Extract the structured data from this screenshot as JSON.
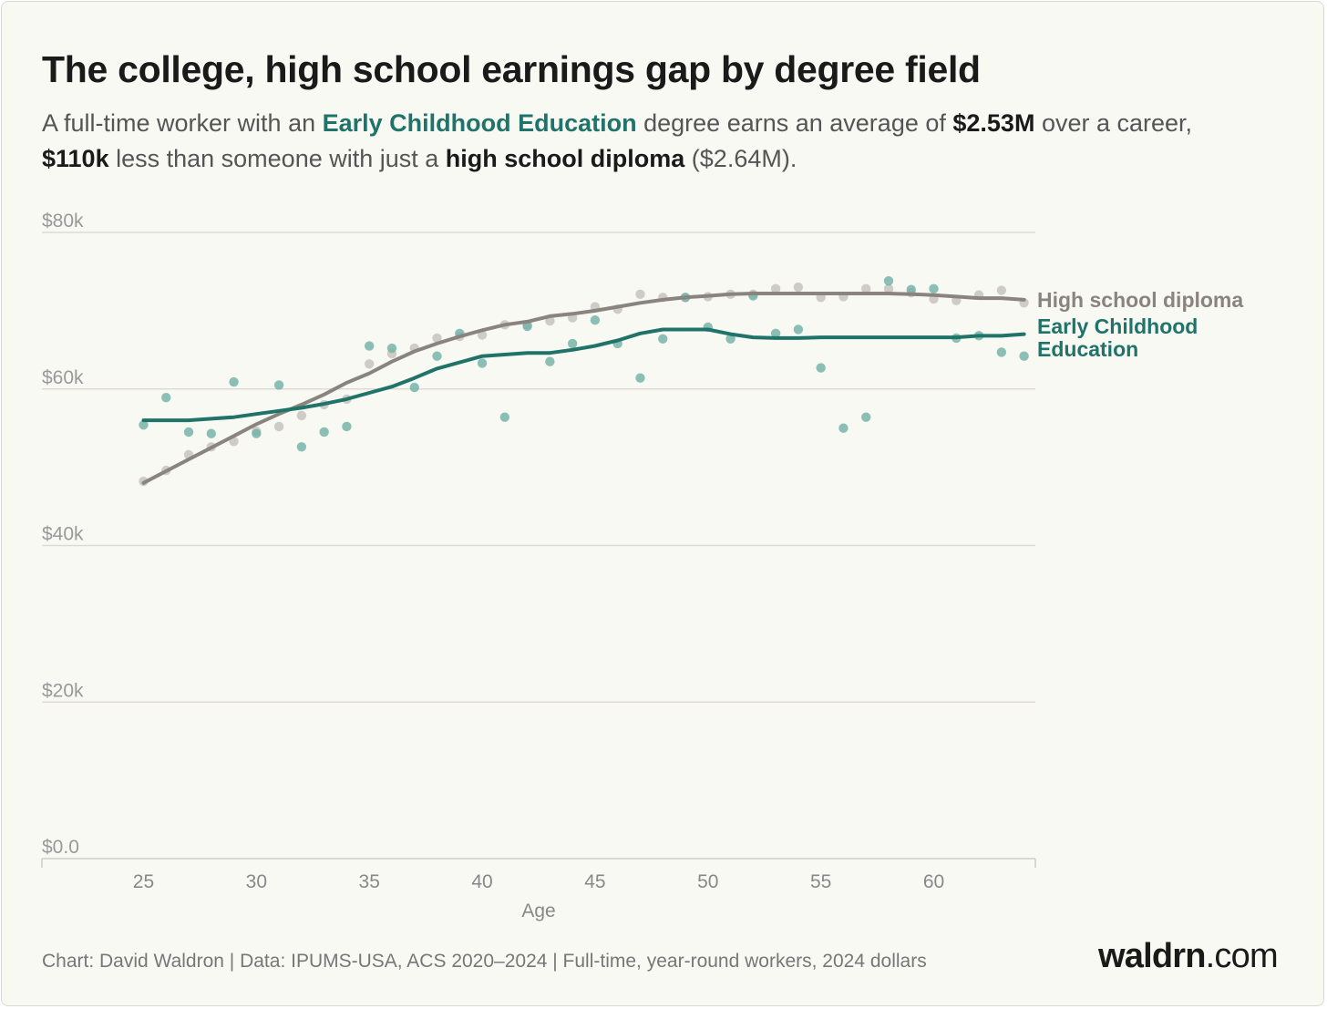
{
  "header": {
    "title": "The college, high school earnings gap by degree field",
    "subtitle": {
      "t1": "A full-time worker with an ",
      "field": "Early Childhood Education",
      "t2": " degree earns an average of ",
      "career_total": "$2.53M",
      "t3": " over a career, ",
      "gap": "$110k",
      "t4": " less than someone with just a ",
      "comparison": "high school diploma",
      "t5": " ($2.64M)."
    }
  },
  "footer": {
    "credit": "Chart: David Waldron | Data: IPUMS-USA, ACS 2020–2024 | Full-time, year-round workers, 2024 dollars",
    "brand_name": "waldrn",
    "brand_tld": ".com"
  },
  "colors": {
    "hs": "#8a8480",
    "hs_point": "#c4c0bb",
    "ece": "#1f7368",
    "ece_point": "#6fb0a6",
    "grid": "#dddbd4"
  },
  "chart_data": {
    "type": "line",
    "xlabel": "Age",
    "ylabel": "",
    "xlim": [
      20.5,
      64.5
    ],
    "ylim": [
      0,
      80000
    ],
    "x_ticks": [
      25,
      30,
      35,
      40,
      45,
      50,
      55,
      60
    ],
    "y_ticks": [
      0,
      20000,
      40000,
      60000,
      80000
    ],
    "y_tick_labels": [
      "$0.0",
      "$20k",
      "$40k",
      "$60k",
      "$80k"
    ],
    "grid": true,
    "series": [
      {
        "name": "High school diploma",
        "label_lines": [
          "High school diploma"
        ],
        "color": "#8a8480",
        "point_color": "#c4c0bb",
        "trend": {
          "x": [
            25,
            26,
            27,
            28,
            29,
            30,
            31,
            32,
            33,
            34,
            35,
            36,
            37,
            38,
            39,
            40,
            41,
            42,
            43,
            44,
            45,
            46,
            47,
            48,
            49,
            50,
            51,
            52,
            53,
            54,
            55,
            56,
            57,
            58,
            59,
            60,
            61,
            62,
            63,
            64
          ],
          "y": [
            48000,
            49500,
            51000,
            52500,
            54000,
            55500,
            56800,
            58000,
            59300,
            60800,
            62000,
            63500,
            64800,
            65800,
            66700,
            67500,
            68200,
            68600,
            69300,
            69600,
            70000,
            70500,
            71000,
            71400,
            71700,
            71900,
            72100,
            72200,
            72200,
            72200,
            72200,
            72200,
            72200,
            72200,
            72100,
            72000,
            71800,
            71600,
            71600,
            71400
          ]
        },
        "points": {
          "x": [
            25,
            26,
            27,
            28,
            29,
            30,
            31,
            32,
            33,
            34,
            35,
            36,
            37,
            38,
            39,
            40,
            41,
            42,
            43,
            44,
            45,
            46,
            47,
            48,
            49,
            50,
            51,
            52,
            53,
            54,
            55,
            56,
            57,
            58,
            59,
            60,
            61,
            62,
            63,
            64
          ],
          "y": [
            48200,
            49600,
            51600,
            52600,
            53300,
            54600,
            55200,
            56600,
            58000,
            58700,
            63200,
            64500,
            65200,
            66500,
            66700,
            66900,
            68200,
            68200,
            68700,
            69100,
            70500,
            70200,
            72100,
            71700,
            71700,
            71800,
            72100,
            72100,
            72800,
            73000,
            71700,
            71800,
            72800,
            72800,
            72300,
            71500,
            71300,
            72000,
            72600,
            71000
          ]
        }
      },
      {
        "name": "Early Childhood Education",
        "label_lines": [
          "Early Childhood",
          "Education"
        ],
        "color": "#1f7368",
        "point_color": "#6fb0a6",
        "trend": {
          "x": [
            25,
            26,
            27,
            28,
            29,
            30,
            31,
            32,
            33,
            34,
            35,
            36,
            37,
            38,
            39,
            40,
            41,
            42,
            43,
            44,
            45,
            46,
            47,
            48,
            49,
            50,
            51,
            52,
            53,
            54,
            55,
            56,
            57,
            58,
            59,
            60,
            61,
            62,
            63,
            64
          ],
          "y": [
            56000,
            56000,
            56000,
            56200,
            56400,
            56800,
            57200,
            57600,
            58100,
            58700,
            59500,
            60300,
            61400,
            62600,
            63400,
            64200,
            64400,
            64600,
            64600,
            65000,
            65500,
            66200,
            67100,
            67600,
            67600,
            67600,
            67000,
            66600,
            66500,
            66500,
            66600,
            66600,
            66600,
            66600,
            66600,
            66600,
            66600,
            66800,
            66800,
            67000
          ]
        },
        "points": {
          "x": [
            25,
            26,
            27,
            28,
            29,
            30,
            31,
            32,
            33,
            34,
            35,
            36,
            37,
            38,
            39,
            40,
            41,
            42,
            43,
            44,
            45,
            46,
            47,
            48,
            49,
            50,
            51,
            52,
            53,
            54,
            55,
            56,
            57,
            58,
            59,
            60,
            61,
            62,
            63,
            64
          ],
          "y": [
            55400,
            58900,
            54500,
            54300,
            60900,
            54300,
            60500,
            52600,
            54500,
            55200,
            65500,
            65200,
            60200,
            64200,
            67100,
            63300,
            56400,
            68000,
            63500,
            65800,
            68800,
            65800,
            61400,
            66400,
            71700,
            67900,
            66400,
            71900,
            67100,
            67600,
            62700,
            55000,
            56400,
            73800,
            72700,
            72800,
            66500,
            66800,
            64700,
            64200
          ]
        }
      }
    ]
  }
}
